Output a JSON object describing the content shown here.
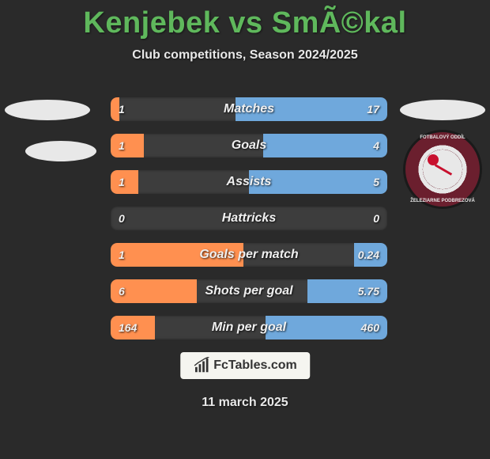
{
  "title": "Kenjebek vs SmÃ©kal",
  "subtitle": "Club competitions, Season 2024/2025",
  "title_color": "#5fb85c",
  "text_color": "#e8e8e8",
  "background_color": "#2a2a2a",
  "bar_track_color": "#3d3d3d",
  "left_bar_color": "#ff9050",
  "right_bar_color": "#6fa8dc",
  "watermark": "FcTables.com",
  "date": "11 march 2025",
  "crest_text_top": "FOTBALOVÝ ODDÍL",
  "crest_text_bot": "ŽELEZIARNE PODBREZOVÁ",
  "rows": [
    {
      "label": "Matches",
      "left_val": "1",
      "right_val": "17",
      "left_pct": 3,
      "right_pct": 55
    },
    {
      "label": "Goals",
      "left_val": "1",
      "right_val": "4",
      "left_pct": 12,
      "right_pct": 45
    },
    {
      "label": "Assists",
      "left_val": "1",
      "right_val": "5",
      "left_pct": 10,
      "right_pct": 50
    },
    {
      "label": "Hattricks",
      "left_val": "0",
      "right_val": "0",
      "left_pct": 0,
      "right_pct": 0
    },
    {
      "label": "Goals per match",
      "left_val": "1",
      "right_val": "0.24",
      "left_pct": 48,
      "right_pct": 12
    },
    {
      "label": "Shots per goal",
      "left_val": "6",
      "right_val": "5.75",
      "left_pct": 31,
      "right_pct": 29
    },
    {
      "label": "Min per goal",
      "left_val": "164",
      "right_val": "460",
      "left_pct": 16,
      "right_pct": 44
    }
  ]
}
